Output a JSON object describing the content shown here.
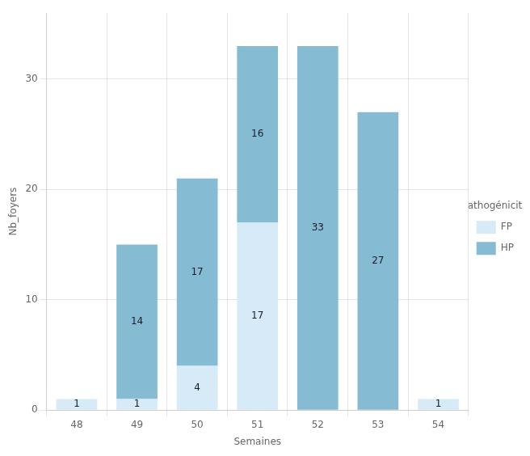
{
  "chart_data": {
    "type": "bar",
    "stacked": true,
    "x_label": "Semaines",
    "y_label": "Nb_foyers",
    "categories": [
      "48",
      "49",
      "50",
      "51",
      "52",
      "53",
      "54"
    ],
    "series": [
      {
        "name": "FP",
        "color": "#d6eaf8",
        "values": [
          1,
          1,
          4,
          17,
          0,
          0,
          1
        ]
      },
      {
        "name": "HP",
        "color": "#85bcd4",
        "values": [
          0,
          14,
          17,
          16,
          33,
          27,
          0
        ]
      }
    ],
    "legend_title": "Pathogénicité",
    "legend": "right",
    "ylim": [
      0,
      36
    ],
    "yticks": [
      0,
      10,
      20,
      30
    ],
    "grid": true,
    "data_labels": true
  }
}
